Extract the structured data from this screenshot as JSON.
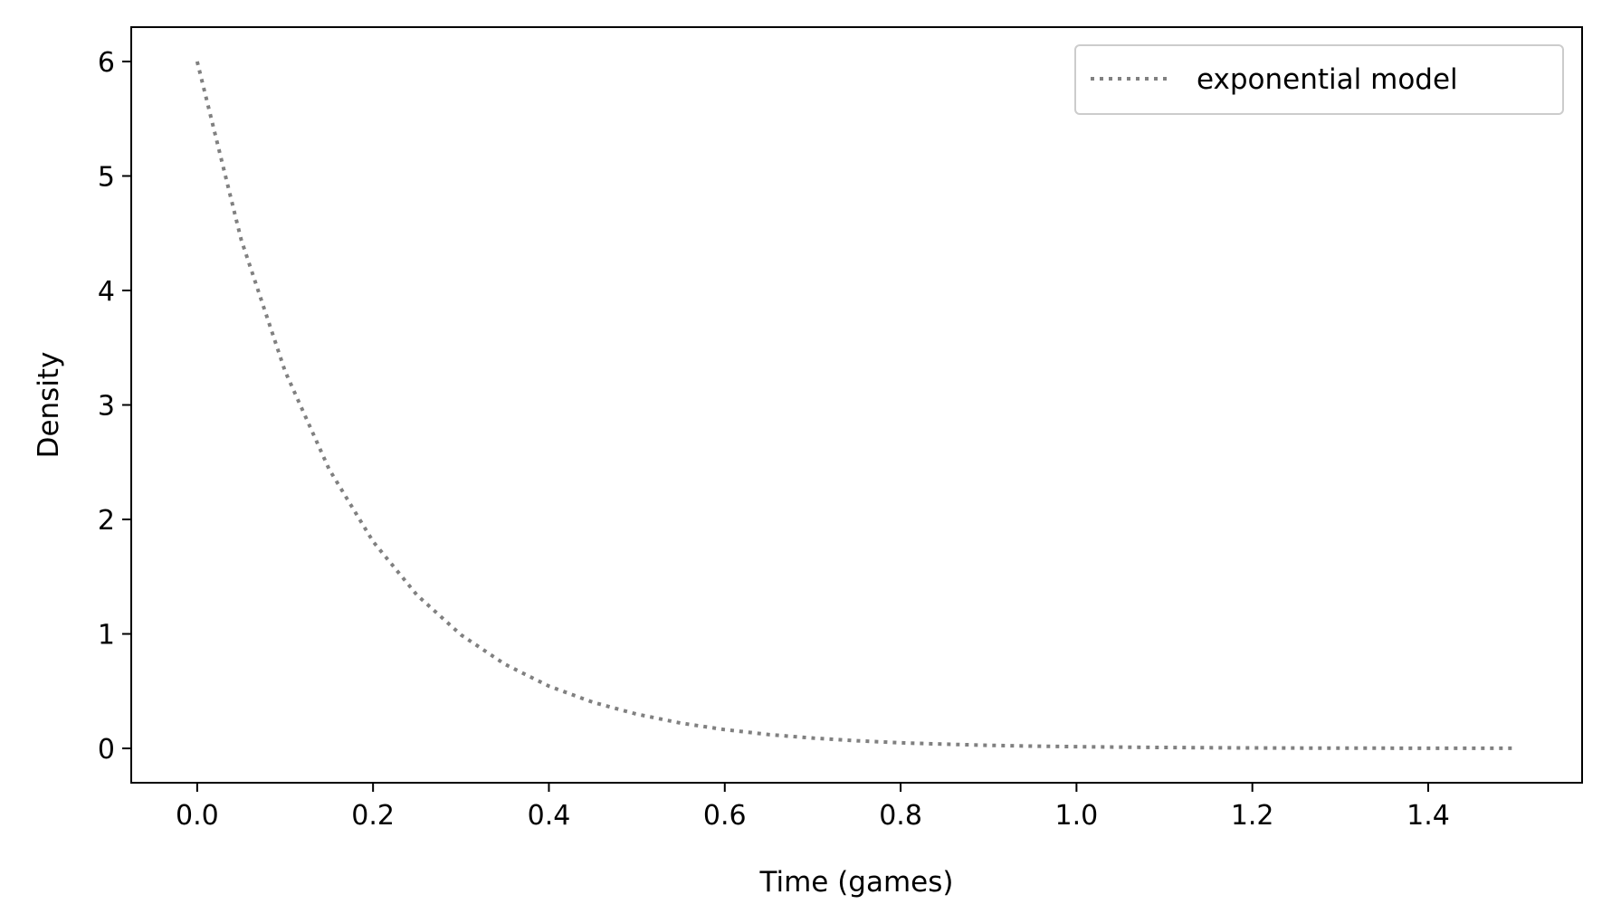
{
  "chart_data": {
    "type": "line",
    "title": "",
    "xlabel": "Time (games)",
    "ylabel": "Density",
    "xlim": [
      -0.075,
      1.575
    ],
    "ylim": [
      -0.3,
      6.3
    ],
    "xticks": [
      0.0,
      0.2,
      0.4,
      0.6,
      0.8,
      1.0,
      1.2,
      1.4
    ],
    "xtick_labels": [
      "0.0",
      "0.2",
      "0.4",
      "0.6",
      "0.8",
      "1.0",
      "1.2",
      "1.4"
    ],
    "yticks": [
      0,
      1,
      2,
      3,
      4,
      5,
      6
    ],
    "ytick_labels": [
      "0",
      "1",
      "2",
      "3",
      "4",
      "5",
      "6"
    ],
    "grid": false,
    "legend_position": "top-right",
    "series": [
      {
        "name": "exponential model",
        "color": "#808080",
        "line_style": "dotted",
        "x": [
          0.0,
          0.05,
          0.1,
          0.15,
          0.2,
          0.25,
          0.3,
          0.35,
          0.4,
          0.45,
          0.5,
          0.55,
          0.6,
          0.65,
          0.7,
          0.75,
          0.8,
          0.85,
          0.9,
          0.95,
          1.0,
          1.05,
          1.1,
          1.15,
          1.2,
          1.25,
          1.3,
          1.35,
          1.4,
          1.45,
          1.5
        ],
        "y": [
          6.0,
          4.445,
          3.293,
          2.439,
          1.807,
          1.339,
          0.992,
          0.735,
          0.544,
          0.403,
          0.299,
          0.221,
          0.164,
          0.121,
          0.09,
          0.067,
          0.049,
          0.037,
          0.027,
          0.02,
          0.015,
          0.011,
          0.008,
          0.006,
          0.004,
          0.003,
          0.002,
          0.002,
          0.001,
          0.001,
          0.001
        ]
      }
    ]
  }
}
